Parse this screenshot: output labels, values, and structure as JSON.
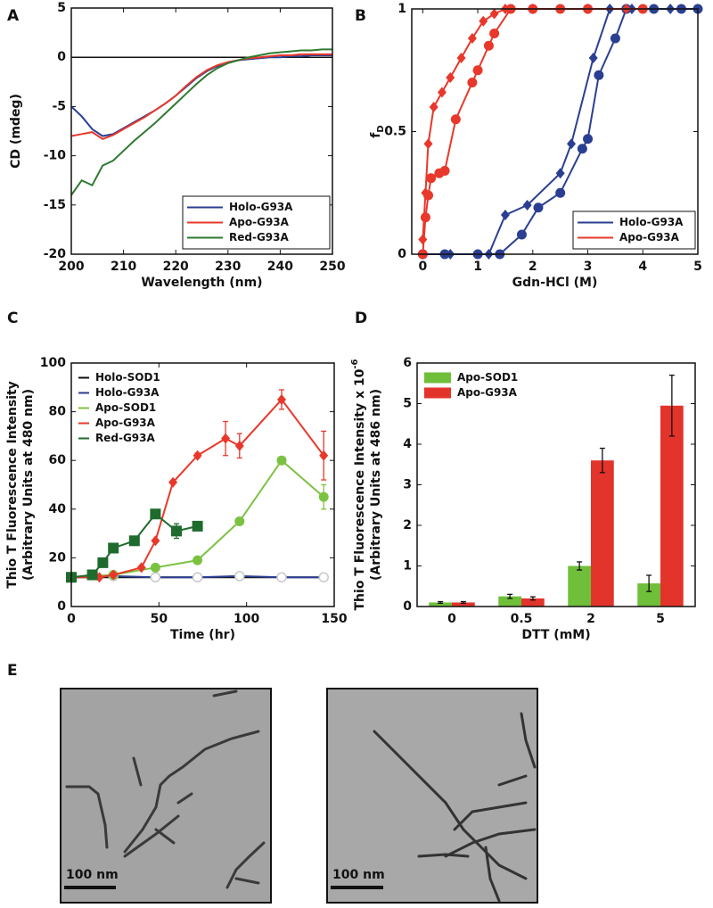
{
  "chart_data": [
    {
      "panel": "A",
      "type": "line",
      "xlabel": "Wavelength (nm)",
      "ylabel": "CD (mdeg)",
      "xlim": [
        200,
        250
      ],
      "xticks": [
        200,
        210,
        220,
        230,
        240,
        250
      ],
      "ylim": [
        -20,
        5
      ],
      "yticks": [
        -20,
        -15,
        -10,
        -5,
        0,
        5
      ],
      "reference_line": 0,
      "legend": "lower right",
      "x": [
        200,
        202,
        204,
        206,
        208,
        210,
        212,
        214,
        216,
        218,
        220,
        222,
        224,
        226,
        228,
        230,
        232,
        234,
        236,
        238,
        240,
        242,
        244,
        246,
        248,
        250
      ],
      "series": [
        {
          "name": "Holo-G93A",
          "color": "#2b3f92",
          "values": [
            -5,
            -6,
            -7.3,
            -8,
            -7.8,
            -7.2,
            -6.6,
            -6,
            -5.4,
            -4.7,
            -3.9,
            -3,
            -2.1,
            -1.4,
            -0.9,
            -0.5,
            -0.3,
            -0.2,
            -0.1,
            0,
            0,
            0.1,
            0.1,
            0.2,
            0.2,
            0.2
          ]
        },
        {
          "name": "Apo-G93A",
          "color": "#e8382b",
          "values": [
            -8,
            -7.8,
            -7.6,
            -8.3,
            -7.9,
            -7.3,
            -6.7,
            -6.1,
            -5.4,
            -4.7,
            -3.9,
            -2.9,
            -2,
            -1.3,
            -0.8,
            -0.5,
            -0.3,
            -0.1,
            0,
            0.1,
            0.2,
            0.2,
            0.3,
            0.3,
            0.3,
            0.3
          ]
        },
        {
          "name": "Red-G93A",
          "color": "#2e7a30",
          "values": [
            -14,
            -12.5,
            -13,
            -11,
            -10.5,
            -9.5,
            -8.5,
            -7.6,
            -6.7,
            -5.7,
            -4.7,
            -3.7,
            -2.7,
            -1.8,
            -1.1,
            -0.6,
            -0.3,
            0,
            0.2,
            0.4,
            0.5,
            0.6,
            0.7,
            0.7,
            0.8,
            0.8
          ]
        }
      ]
    },
    {
      "panel": "B",
      "type": "line",
      "xlabel": "Gdn-HCl (M)",
      "ylabel": "f",
      "ylabel_subscript": "D",
      "xlim": [
        -0.2,
        5
      ],
      "xticks": [
        0,
        1,
        2,
        3,
        4,
        5
      ],
      "ylim": [
        0,
        1
      ],
      "yticks": [
        0,
        0.5,
        1
      ],
      "legend": "lower right",
      "series": [
        {
          "name": "Holo-G93A",
          "color": "#2b3f92",
          "curves": [
            {
              "marker": "diamond",
              "x": [
                0,
                0.5,
                1.2,
                1.5,
                1.9,
                2.5,
                2.7,
                3.1,
                3.4,
                3.8,
                4.5,
                5
              ],
              "values": [
                0,
                0,
                0,
                0.16,
                0.2,
                0.33,
                0.45,
                0.8,
                1,
                1,
                1,
                1
              ]
            },
            {
              "marker": "circle",
              "x": [
                0,
                0.4,
                1,
                1.4,
                1.8,
                2.1,
                2.5,
                2.9,
                3,
                3.2,
                3.5,
                3.7,
                4.2,
                4.7,
                5
              ],
              "values": [
                0,
                0,
                0,
                0,
                0.08,
                0.19,
                0.25,
                0.43,
                0.47,
                0.73,
                0.88,
                1,
                1,
                1,
                1
              ]
            }
          ]
        },
        {
          "name": "Apo-G93A",
          "color": "#e8382b",
          "curves": [
            {
              "marker": "diamond",
              "x": [
                0,
                0.05,
                0.1,
                0.2,
                0.35,
                0.5,
                0.7,
                0.9,
                1.1,
                1.3,
                1.5,
                2,
                3,
                3.7
              ],
              "values": [
                0.06,
                0.25,
                0.45,
                0.6,
                0.66,
                0.72,
                0.8,
                0.88,
                0.95,
                0.98,
                1,
                1,
                1,
                1
              ]
            },
            {
              "marker": "circle",
              "x": [
                0,
                0.05,
                0.1,
                0.15,
                0.3,
                0.4,
                0.6,
                0.9,
                1,
                1.2,
                1.3,
                1.6,
                2,
                2.5,
                3,
                4
              ],
              "values": [
                0,
                0.15,
                0.24,
                0.31,
                0.33,
                0.34,
                0.55,
                0.7,
                0.75,
                0.85,
                0.9,
                1,
                1,
                1,
                1,
                1
              ]
            }
          ]
        }
      ]
    },
    {
      "panel": "C",
      "type": "line",
      "xlabel": "Time (hr)",
      "ylabel": [
        "Thio T Fluorescence Intensity",
        "(Arbitrary Units at 480 nm)"
      ],
      "xlim": [
        0,
        150
      ],
      "xticks": [
        0,
        50,
        100,
        150
      ],
      "ylim": [
        0,
        100
      ],
      "yticks": [
        0,
        20,
        40,
        60,
        80,
        100
      ],
      "legend": "upper left",
      "series": [
        {
          "name": "Holo-SOD1",
          "color": "#111111",
          "x": [
            0,
            24,
            48,
            72,
            96,
            120,
            144
          ],
          "values": [
            12,
            12,
            12,
            12,
            12,
            12,
            12
          ]
        },
        {
          "name": "Holo-G93A",
          "color": "#2b3f92",
          "marker": "open-circle",
          "x": [
            0,
            24,
            48,
            72,
            96,
            120,
            144
          ],
          "values": [
            12,
            12.5,
            12,
            12,
            12.5,
            12,
            12
          ]
        },
        {
          "name": "Apo-SOD1",
          "color": "#7cc242",
          "marker": "circle",
          "x": [
            0,
            24,
            48,
            72,
            96,
            120,
            144
          ],
          "values": [
            12,
            13,
            16,
            19,
            35,
            60,
            45
          ],
          "errors": [
            null,
            null,
            null,
            null,
            null,
            null,
            5
          ]
        },
        {
          "name": "Apo-G93A",
          "color": "#e8382b",
          "marker": "diamond",
          "x": [
            0,
            16,
            24,
            40,
            48,
            58,
            72,
            88,
            96,
            120,
            144
          ],
          "values": [
            12,
            12,
            13,
            16,
            27,
            51,
            62,
            69,
            66,
            85,
            62
          ],
          "errors": [
            null,
            null,
            null,
            null,
            null,
            null,
            1,
            7,
            5,
            4,
            10
          ]
        },
        {
          "name": "Red-G93A",
          "color": "#1f6a2d",
          "marker": "square",
          "x": [
            0,
            12,
            18,
            24,
            36,
            48,
            60,
            72
          ],
          "values": [
            12,
            13,
            18,
            24,
            27,
            38,
            31,
            33
          ],
          "errors": [
            null,
            null,
            null,
            null,
            null,
            null,
            3,
            null
          ]
        }
      ]
    },
    {
      "panel": "D",
      "type": "bar",
      "xlabel": "DTT (mM)",
      "ylabel": [
        "Thio T Fluorescence Intensity x 10",
        "(Arbitrary Units at 486 nm)"
      ],
      "ylabel_superscript": "-6",
      "categories": [
        "0",
        "0.5",
        "2",
        "5"
      ],
      "ylim": [
        0,
        6
      ],
      "yticks": [
        0,
        1,
        2,
        3,
        4,
        5,
        6
      ],
      "legend": "upper left",
      "series": [
        {
          "name": "Apo-SOD1",
          "color": "#6fbf3a",
          "values": [
            0.1,
            0.25,
            1,
            0.57
          ],
          "errors": [
            0.02,
            0.05,
            0.1,
            0.2
          ]
        },
        {
          "name": "Apo-G93A",
          "color": "#e3342b",
          "values": [
            0.1,
            0.2,
            3.6,
            4.95
          ],
          "errors": [
            0.02,
            0.04,
            0.3,
            0.75
          ]
        }
      ]
    }
  ],
  "micrographs": {
    "panel": "E",
    "scale_bars": [
      "100 nm",
      "100 nm"
    ]
  }
}
